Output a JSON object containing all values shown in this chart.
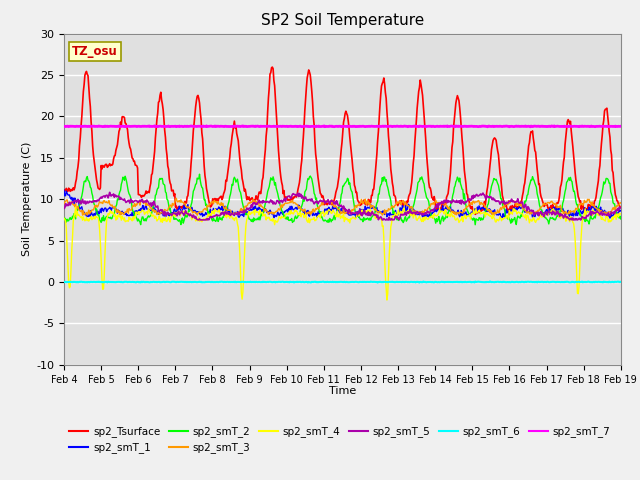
{
  "title": "SP2 Soil Temperature",
  "xlabel": "Time",
  "ylabel": "Soil Temperature (C)",
  "ylim": [
    -10,
    30
  ],
  "background_color": "#e8e8e8",
  "plot_bg_color": "#e0e0e0",
  "annotation_text": "TZ_osu",
  "annotation_color": "#cc0000",
  "annotation_bg": "#ffffcc",
  "annotation_border": "#999900",
  "series": {
    "sp2_Tsurface": {
      "color": "#ff0000",
      "lw": 1.2
    },
    "sp2_smT_1": {
      "color": "#0000ff",
      "lw": 1.0
    },
    "sp2_smT_2": {
      "color": "#00ff00",
      "lw": 1.0
    },
    "sp2_smT_3": {
      "color": "#ff9900",
      "lw": 1.0
    },
    "sp2_smT_4": {
      "color": "#ffff00",
      "lw": 1.0
    },
    "sp2_smT_5": {
      "color": "#aa00aa",
      "lw": 1.2
    },
    "sp2_smT_6": {
      "color": "#00ffff",
      "lw": 1.5
    },
    "sp2_smT_7": {
      "color": "#ff00ff",
      "lw": 2.0
    }
  },
  "xtick_labels": [
    "Feb 4",
    "Feb 5",
    "Feb 6",
    "Feb 7",
    "Feb 8",
    "Feb 9",
    "Feb 10",
    "Feb 11",
    "Feb 12",
    "Feb 13",
    "Feb 14",
    "Feb 15",
    "Feb 16",
    "Feb 17",
    "Feb 18",
    "Feb 19"
  ],
  "yticks": [
    -10,
    -5,
    0,
    5,
    10,
    15,
    20,
    25,
    30
  ],
  "grid_color": "#ffffff",
  "grid_lw": 1.0
}
